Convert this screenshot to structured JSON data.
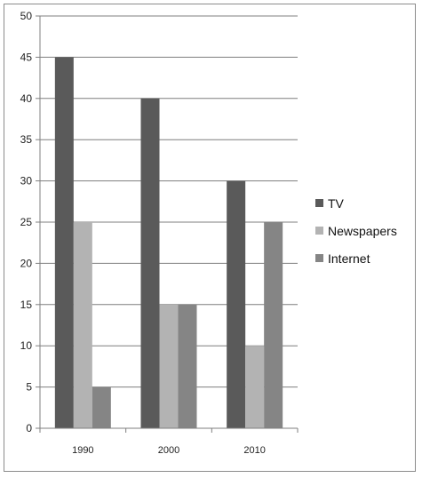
{
  "chart_data": {
    "type": "bar",
    "title": "",
    "xlabel": "",
    "ylabel": "",
    "categories": [
      "1990",
      "2000",
      "2010"
    ],
    "series": [
      {
        "name": "TV",
        "color": "#5a5a5a",
        "values": [
          45,
          40,
          30
        ]
      },
      {
        "name": "Newspapers",
        "color": "#b3b3b3",
        "values": [
          25,
          15,
          10
        ]
      },
      {
        "name": "Internet",
        "color": "#858585",
        "values": [
          5,
          15,
          25
        ]
      }
    ],
    "ylim": [
      0,
      50
    ],
    "yticks": [
      "0",
      "5",
      "10",
      "15",
      "20",
      "25",
      "30",
      "35",
      "40",
      "45",
      "50"
    ],
    "grid": true,
    "legend_position": "right"
  }
}
